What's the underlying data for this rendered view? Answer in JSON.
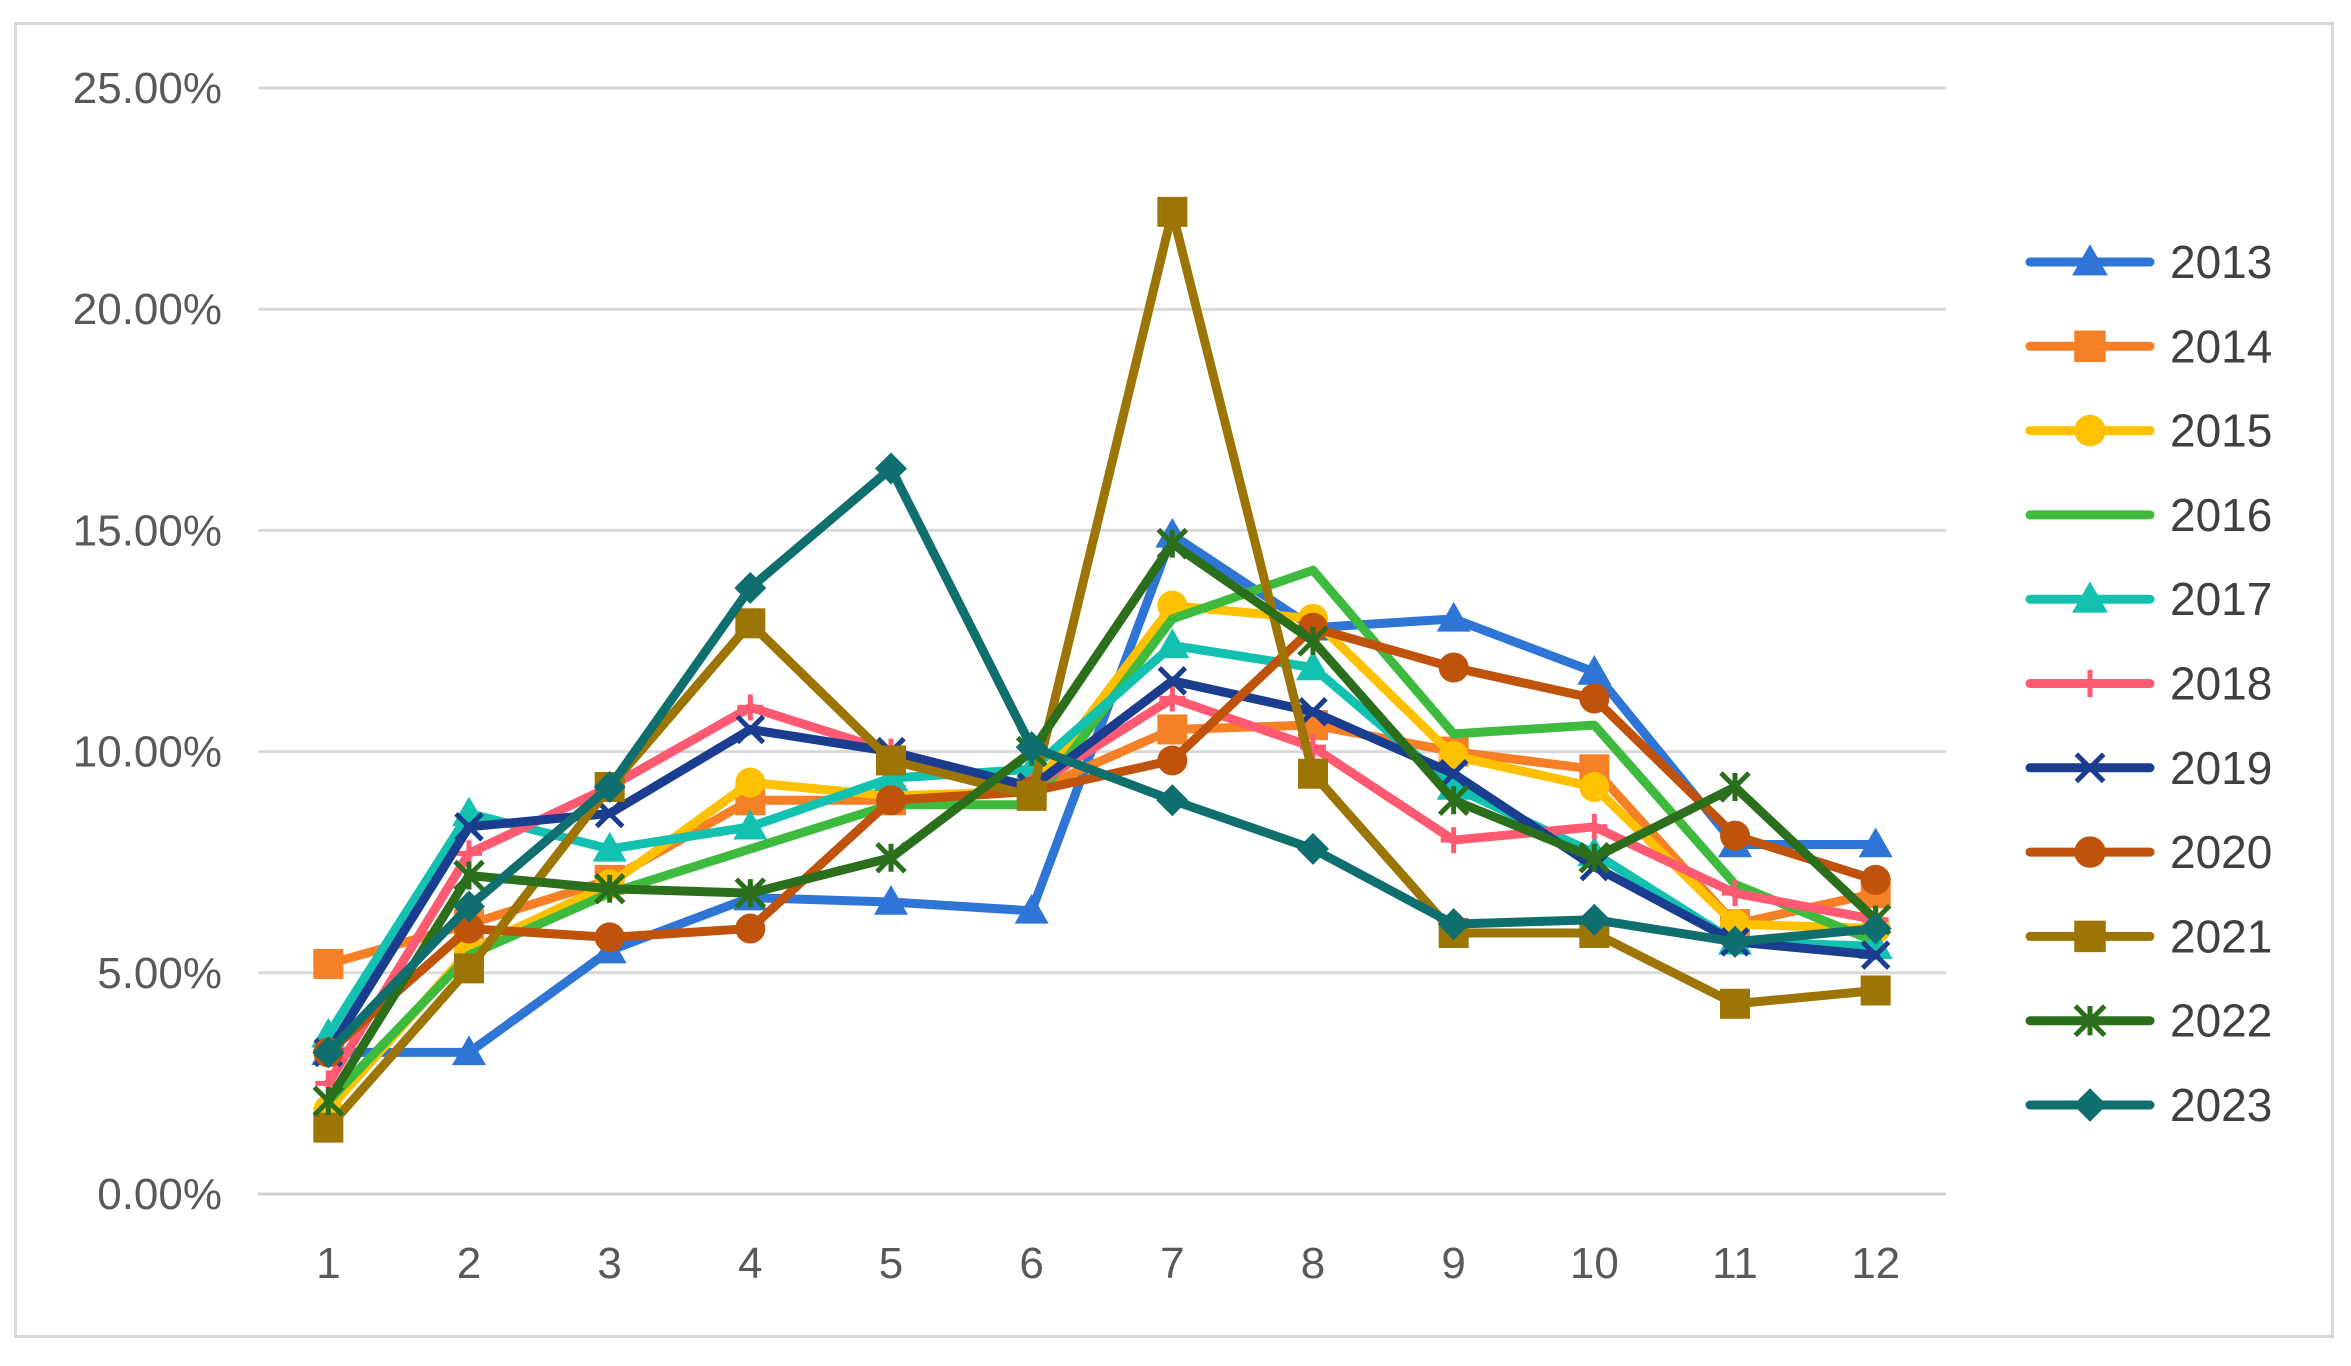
{
  "chart_data": {
    "type": "line",
    "title": "",
    "xlabel": "",
    "ylabel": "",
    "x": [
      1,
      2,
      3,
      4,
      5,
      6,
      7,
      8,
      9,
      10,
      11,
      12
    ],
    "x_tick_labels": [
      "1",
      "2",
      "3",
      "4",
      "5",
      "6",
      "7",
      "8",
      "9",
      "10",
      "11",
      "12"
    ],
    "ylim": [
      0,
      25
    ],
    "y_ticks": [
      0,
      5,
      10,
      15,
      20,
      25
    ],
    "y_tick_labels": [
      "0.00%",
      "5.00%",
      "10.00%",
      "15.00%",
      "20.00%",
      "25.00%"
    ],
    "grid": "horizontal",
    "legend_position": "right",
    "series": [
      {
        "name": "2013",
        "color": "#2E75D6",
        "marker": "triangle",
        "values": [
          3.2,
          3.2,
          5.5,
          6.7,
          6.6,
          6.4,
          14.9,
          12.8,
          13.0,
          11.8,
          7.9,
          7.9
        ]
      },
      {
        "name": "2014",
        "color": "#F58025",
        "marker": "square",
        "values": [
          5.2,
          6.1,
          7.1,
          8.9,
          8.9,
          9.1,
          10.5,
          10.6,
          10.0,
          9.6,
          6.1,
          6.8
        ]
      },
      {
        "name": "2015",
        "color": "#FFC000",
        "marker": "circle",
        "values": [
          1.9,
          5.5,
          7.0,
          9.3,
          9.0,
          9.1,
          13.3,
          13.0,
          9.9,
          9.2,
          6.1,
          6.0
        ]
      },
      {
        "name": "2016",
        "color": "#3EBB3E",
        "marker": "none",
        "values": [
          2.1,
          5.4,
          6.8,
          7.8,
          8.8,
          8.8,
          13.0,
          14.1,
          10.4,
          10.6,
          7.0,
          5.7
        ]
      },
      {
        "name": "2017",
        "color": "#13C1B1",
        "marker": "triangle",
        "values": [
          3.6,
          8.6,
          7.8,
          8.3,
          9.4,
          9.6,
          12.4,
          11.9,
          9.2,
          7.7,
          5.7,
          5.6
        ]
      },
      {
        "name": "2018",
        "color": "#FF5A72",
        "marker": "plus",
        "values": [
          2.5,
          7.7,
          9.2,
          11.0,
          10.0,
          9.2,
          11.2,
          10.1,
          8.0,
          8.3,
          6.8,
          6.2
        ]
      },
      {
        "name": "2019",
        "color": "#1A3D8F",
        "marker": "x",
        "values": [
          3.2,
          8.3,
          8.6,
          10.5,
          10.0,
          9.2,
          11.6,
          10.9,
          9.5,
          7.4,
          5.7,
          5.4
        ]
      },
      {
        "name": "2020",
        "color": "#C0530C",
        "marker": "circle",
        "values": [
          3.2,
          6.0,
          5.8,
          6.0,
          8.9,
          9.1,
          9.8,
          12.8,
          11.9,
          11.2,
          8.1,
          7.1
        ]
      },
      {
        "name": "2021",
        "color": "#9C7505",
        "marker": "square",
        "values": [
          1.5,
          5.1,
          9.2,
          12.9,
          9.8,
          9.0,
          22.2,
          9.5,
          5.9,
          5.9,
          4.3,
          4.6
        ]
      },
      {
        "name": "2022",
        "color": "#2B6E1C",
        "marker": "star",
        "values": [
          2.1,
          7.2,
          6.9,
          6.8,
          7.6,
          10.0,
          14.7,
          12.5,
          8.9,
          7.6,
          9.2,
          6.2
        ]
      },
      {
        "name": "2023",
        "color": "#0F6E6E",
        "marker": "diamond",
        "values": [
          3.2,
          6.5,
          9.2,
          13.7,
          16.4,
          10.1,
          8.9,
          7.8,
          6.1,
          6.2,
          5.7,
          6.0
        ]
      }
    ]
  }
}
